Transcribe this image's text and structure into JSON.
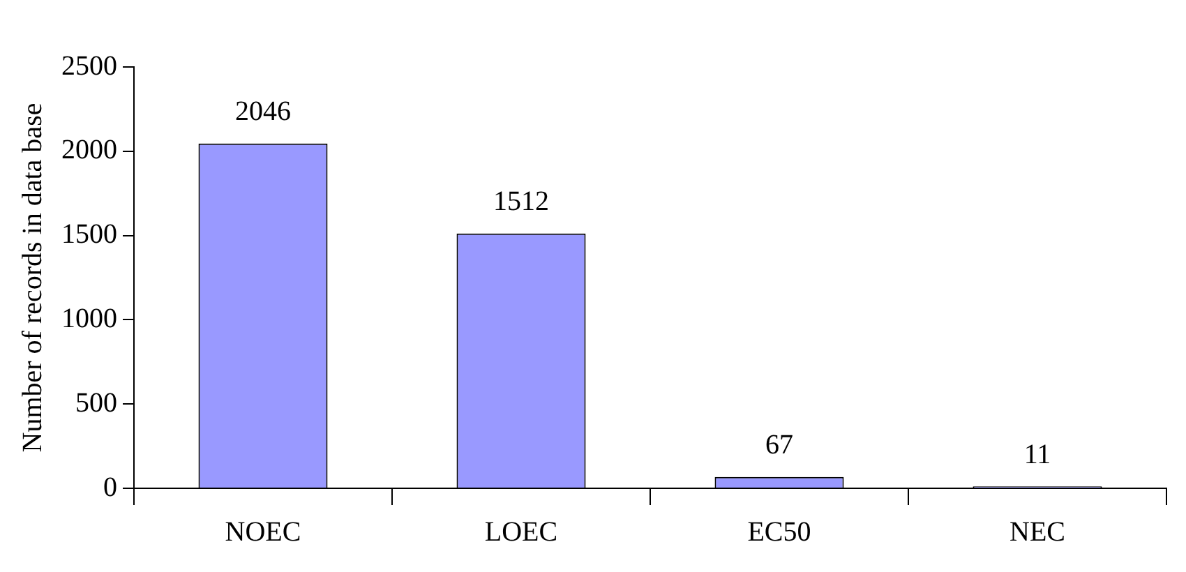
{
  "chart_data": {
    "type": "bar",
    "ylabel": "Number of records in data base",
    "categories": [
      "NOEC",
      "LOEC",
      "EC50",
      "NEC"
    ],
    "values": [
      2046,
      1512,
      67,
      11
    ],
    "color": "#9999ff",
    "ylim": [
      0,
      2500
    ],
    "yticks": [
      0,
      500,
      1000,
      1500,
      2000,
      2500
    ],
    "grid": false,
    "legend": false,
    "data_labels": true
  }
}
